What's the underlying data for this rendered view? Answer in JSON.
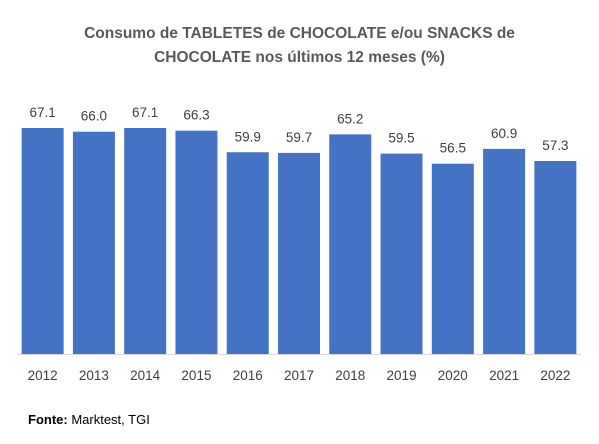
{
  "chart_data": {
    "type": "bar",
    "title_lines": [
      "Consumo de TABLETES de CHOCOLATE e/ou SNACKS de",
      "CHOCOLATE nos últimos 12 meses (%)"
    ],
    "categories": [
      "2012",
      "2013",
      "2014",
      "2015",
      "2016",
      "2017",
      "2018",
      "2019",
      "2020",
      "2021",
      "2022"
    ],
    "values": [
      67.1,
      66.0,
      67.1,
      66.3,
      59.9,
      59.7,
      65.2,
      59.5,
      56.5,
      60.9,
      57.3
    ],
    "value_labels": [
      "67.1",
      "66.0",
      "67.1",
      "66.3",
      "59.9",
      "59.7",
      "65.2",
      "59.5",
      "56.5",
      "60.9",
      "57.3"
    ],
    "xlabel": "",
    "ylabel": "",
    "ylim": [
      0,
      67.1
    ],
    "grid": false,
    "legend": "none",
    "bar_color": "#4472C4"
  },
  "source": {
    "label": "Fonte:",
    "text": " Marktest, TGI"
  }
}
